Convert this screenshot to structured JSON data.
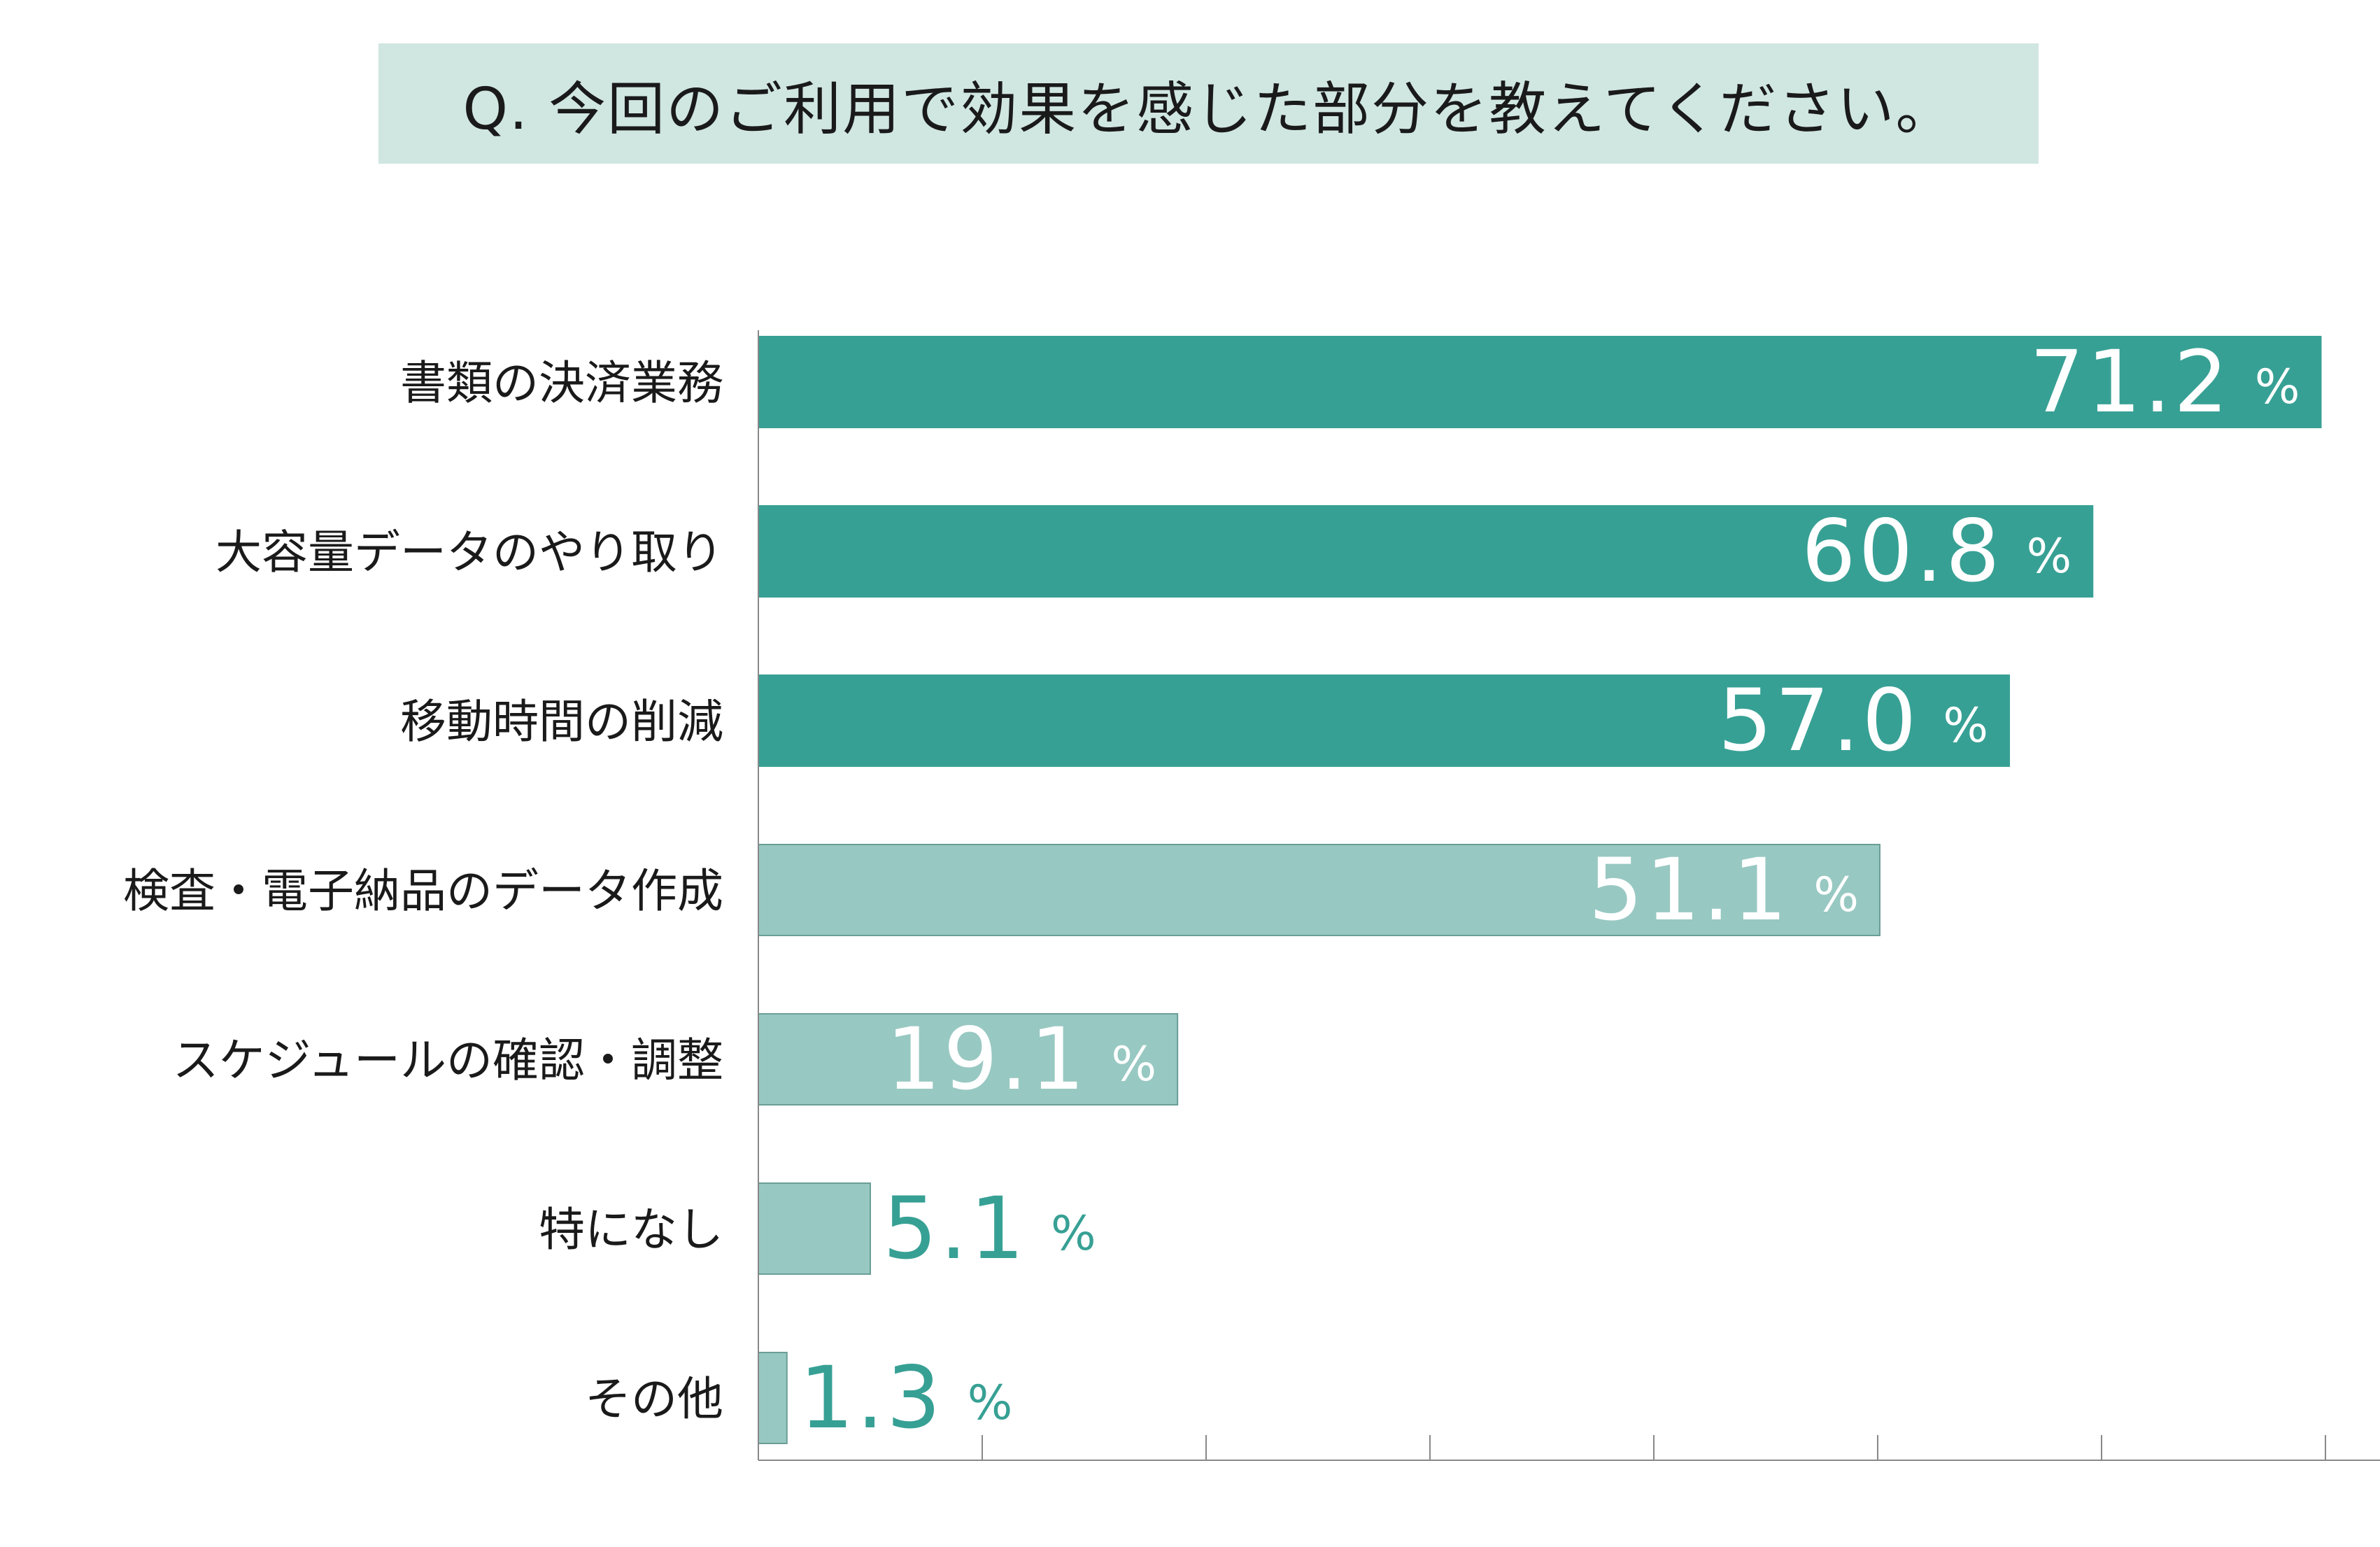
{
  "title": "Q. 今回のご利用で効果を感じた部分を教えてください。",
  "colors": {
    "dark_bar": "#37a094",
    "light_bar": "#98c8c2",
    "light_bar_stroke": "#6a9e98",
    "title_bg": "#d0e6e1",
    "outside_label": "#37a094",
    "inside_label": "#ffffff",
    "axis": "#888888"
  },
  "chart_data": {
    "type": "bar",
    "orientation": "horizontal",
    "title": "Q. 今回のご利用で効果を感じた部分を教えてください。",
    "unit": "%",
    "xlim": [
      0,
      72.3
    ],
    "xtick_count": 8,
    "grid": false,
    "categories": [
      "書類の決済業務",
      "大容量データのやり取り",
      "移動時間の削減",
      "検査・電子納品のデータ作成",
      "スケジュールの確認・調整",
      "特になし",
      "その他"
    ],
    "values": [
      71.2,
      60.8,
      57.0,
      51.1,
      19.1,
      5.1,
      1.3
    ],
    "value_labels": [
      "71.2",
      "60.8",
      "57.0",
      "51.1",
      "19.1",
      "5.1",
      "1.3"
    ],
    "emphasis": [
      "dark",
      "dark",
      "dark",
      "light",
      "light",
      "light",
      "light"
    ],
    "label_position": [
      "inside",
      "inside",
      "inside",
      "inside",
      "inside",
      "outside",
      "outside"
    ]
  }
}
